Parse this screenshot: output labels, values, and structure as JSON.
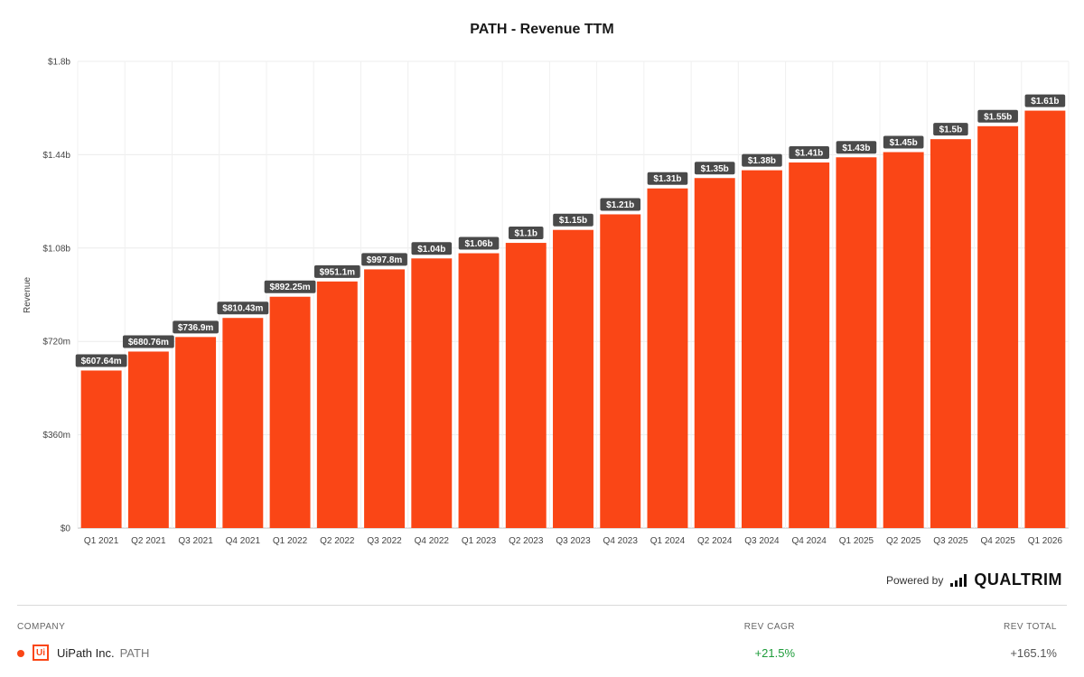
{
  "chart_data": {
    "type": "bar",
    "title": "PATH - Revenue TTM",
    "ylabel": "Revenue",
    "xlabel": "",
    "ylim": [
      0,
      1800
    ],
    "unit": "millions USD",
    "yticks": [
      {
        "value": 0,
        "label": "$0"
      },
      {
        "value": 360,
        "label": "$360m"
      },
      {
        "value": 720,
        "label": "$720m"
      },
      {
        "value": 1080,
        "label": "$1.08b"
      },
      {
        "value": 1440,
        "label": "$1.44b"
      },
      {
        "value": 1800,
        "label": "$1.8b"
      }
    ],
    "categories": [
      "Q1 2021",
      "Q2 2021",
      "Q3 2021",
      "Q4 2021",
      "Q1 2022",
      "Q2 2022",
      "Q3 2022",
      "Q4 2022",
      "Q1 2023",
      "Q2 2023",
      "Q3 2023",
      "Q4 2023",
      "Q1 2024",
      "Q2 2024",
      "Q3 2024",
      "Q4 2024",
      "Q1 2025",
      "Q2 2025",
      "Q3 2025",
      "Q4 2025",
      "Q1 2026"
    ],
    "values": [
      607.64,
      680.76,
      736.9,
      810.43,
      892.25,
      951.1,
      997.8,
      1040,
      1060,
      1100,
      1150,
      1210,
      1310,
      1350,
      1380,
      1410,
      1430,
      1450,
      1500,
      1550,
      1610
    ],
    "data_labels": [
      "$607.64m",
      "$680.76m",
      "$736.9m",
      "$810.43m",
      "$892.25m",
      "$951.1m",
      "$997.8m",
      "$1.04b",
      "$1.06b",
      "$1.1b",
      "$1.15b",
      "$1.21b",
      "$1.31b",
      "$1.35b",
      "$1.38b",
      "$1.41b",
      "$1.43b",
      "$1.45b",
      "$1.5b",
      "$1.55b",
      "$1.61b"
    ],
    "bar_color": "#fa4616",
    "label_bg": "#4a4a4a",
    "grid": true
  },
  "footer": {
    "powered_by": "Powered by",
    "brand": "QUALTRIM"
  },
  "table": {
    "headers": {
      "company": "COMPANY",
      "cagr": "REV CAGR",
      "total": "REV TOTAL"
    },
    "row": {
      "logo_text": "Ui",
      "name": "UiPath Inc.",
      "ticker": "PATH",
      "cagr": "+21.5%",
      "total": "+165.1%",
      "dot_color": "#fa4616"
    }
  }
}
